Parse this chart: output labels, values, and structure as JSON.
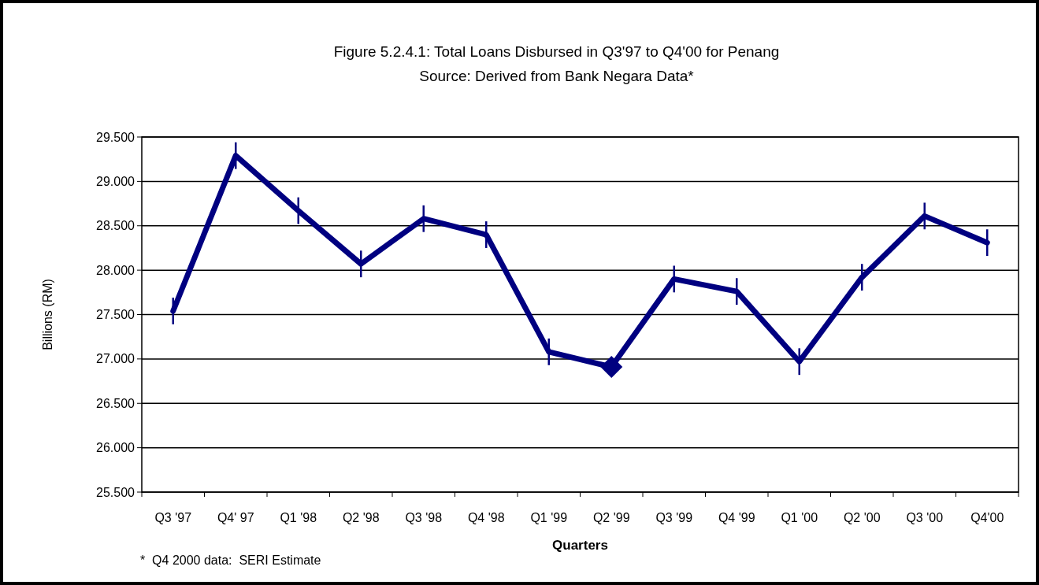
{
  "chart_data": {
    "type": "line",
    "title": "Figure 5.2.4.1: Total Loans Disbursed in Q3'97 to Q4'00 for Penang",
    "subtitle": "Source: Derived from Bank Negara Data*",
    "xlabel": "Quarters",
    "ylabel": "Billions (RM)",
    "annotations": [
      "*  Q4 2000 data:  SERI Estimate"
    ],
    "categories": [
      "Q3 '97",
      "Q4' 97",
      "Q1 '98",
      "Q2 '98",
      "Q3 '98",
      "Q4 '98",
      "Q1 '99",
      "Q2 '99",
      "Q3 '99",
      "Q4 '99",
      "Q1 '00",
      "Q2 '00",
      "Q3 '00",
      "Q4'00"
    ],
    "series": [
      {
        "color": "#000080",
        "marker": "none",
        "values": [
          27.54,
          29.29,
          28.67,
          28.07,
          28.58,
          28.4,
          27.08,
          26.91,
          27.9,
          27.76,
          26.97,
          27.92,
          28.61,
          28.31
        ],
        "errors": [
          0.15,
          0.15,
          0.15,
          0.15,
          0.15,
          0.15,
          0.15,
          null,
          0.15,
          0.15,
          0.15,
          0.15,
          0.15,
          0.15
        ]
      },
      {
        "type": "scatter",
        "color": "#000080",
        "marker": "diamond",
        "x": [
          "Q2 '99"
        ],
        "values": [
          26.91
        ]
      }
    ],
    "ylim": [
      25.5,
      29.5
    ],
    "yticks": [
      {
        "value": 25.5,
        "label": "25.500"
      },
      {
        "value": 26,
        "label": "26.000"
      },
      {
        "value": 26.5,
        "label": "26.500"
      },
      {
        "value": 27,
        "label": "27.000"
      },
      {
        "value": 27.5,
        "label": "27.500"
      },
      {
        "value": 28,
        "label": "28.000"
      },
      {
        "value": 28.5,
        "label": "28.500"
      },
      {
        "value": 29,
        "label": "29.000"
      },
      {
        "value": 29.5,
        "label": "29.500"
      }
    ],
    "grid": "y"
  }
}
